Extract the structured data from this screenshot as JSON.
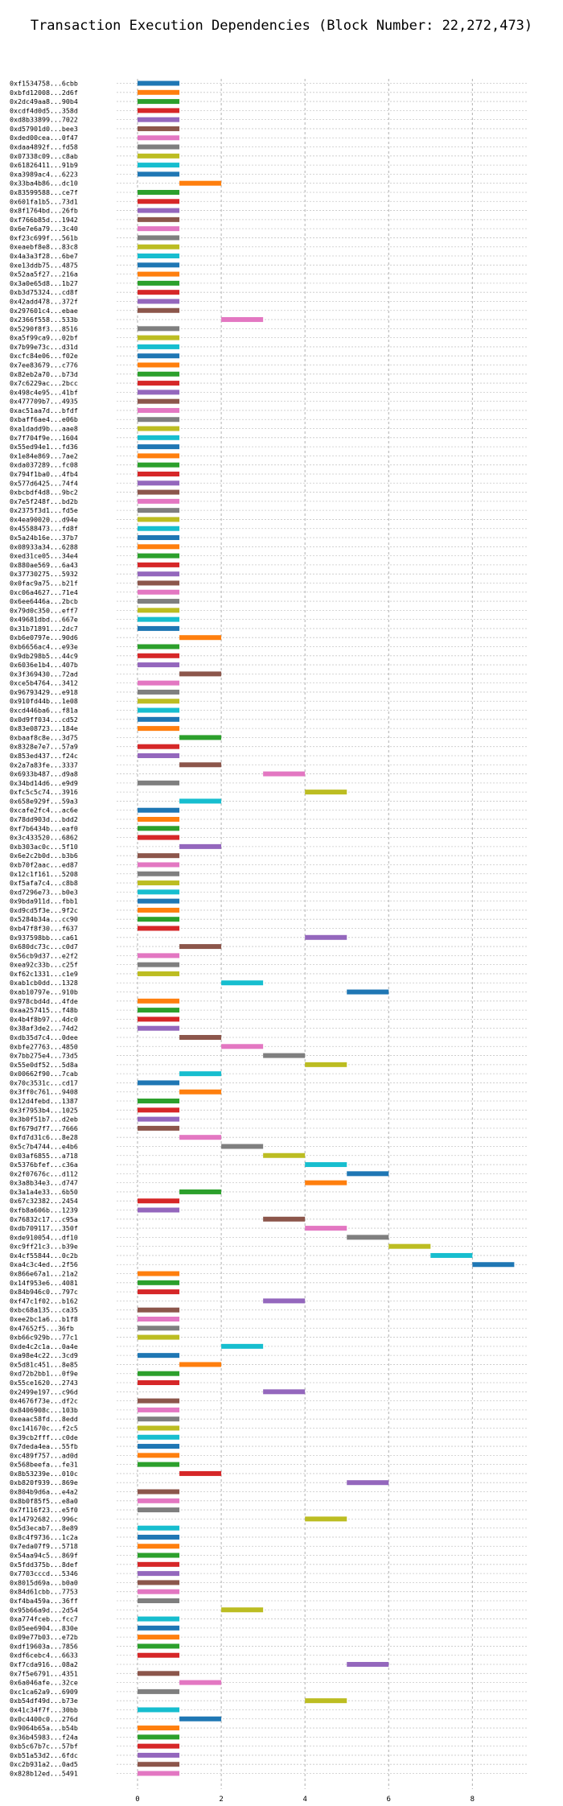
{
  "chart_data": {
    "type": "bar",
    "orientation": "horizontal",
    "title": "Transaction Execution Dependencies (Block Number: 22,272,473)",
    "xlabel": "",
    "ylabel": "",
    "xlim": [
      -0.5,
      9.3
    ],
    "xticks": [
      0,
      2,
      4,
      6,
      8
    ],
    "grid": true,
    "legend": "none",
    "palette": [
      "#1f77b4",
      "#ff7f0e",
      "#2ca02c",
      "#d62728",
      "#9467bd",
      "#8c564b",
      "#e377c2",
      "#7f7f7f",
      "#bcbd22",
      "#17becf"
    ],
    "transactions": [
      {
        "label": "0xf1534758...6cbb",
        "start": 0,
        "end": 1
      },
      {
        "label": "0xbfd12008...2d6f",
        "start": 0,
        "end": 1
      },
      {
        "label": "0x2dc49aa8...90b4",
        "start": 0,
        "end": 1
      },
      {
        "label": "0xcdf4d0d5...358d",
        "start": 0,
        "end": 1
      },
      {
        "label": "0xd8b33899...7022",
        "start": 0,
        "end": 1
      },
      {
        "label": "0xd57901d0...bee3",
        "start": 0,
        "end": 1
      },
      {
        "label": "0xded00cea...0f47",
        "start": 0,
        "end": 1
      },
      {
        "label": "0xdaa4892f...fd58",
        "start": 0,
        "end": 1
      },
      {
        "label": "0x07338c09...c8ab",
        "start": 0,
        "end": 1
      },
      {
        "label": "0x61826411...91b9",
        "start": 0,
        "end": 1
      },
      {
        "label": "0xa3989ac4...6223",
        "start": 0,
        "end": 1
      },
      {
        "label": "0x33ba4b86...dc10",
        "start": 1,
        "end": 2
      },
      {
        "label": "0x83599588...ce7f",
        "start": 0,
        "end": 1
      },
      {
        "label": "0x601fa1b5...73d1",
        "start": 0,
        "end": 1
      },
      {
        "label": "0x8f1764bd...26fb",
        "start": 0,
        "end": 1
      },
      {
        "label": "0xf766b85d...1942",
        "start": 0,
        "end": 1
      },
      {
        "label": "0x6e7e6a79...3c40",
        "start": 0,
        "end": 1
      },
      {
        "label": "0xf23c699f...561b",
        "start": 0,
        "end": 1
      },
      {
        "label": "0xeaebf8e8...83c8",
        "start": 0,
        "end": 1
      },
      {
        "label": "0x4a3a3f28...6be7",
        "start": 0,
        "end": 1
      },
      {
        "label": "0xe13ddb75...4875",
        "start": 0,
        "end": 1
      },
      {
        "label": "0x52aa5f27...216a",
        "start": 0,
        "end": 1
      },
      {
        "label": "0x3a0e65d8...1b27",
        "start": 0,
        "end": 1
      },
      {
        "label": "0xb3d75324...cd8f",
        "start": 0,
        "end": 1
      },
      {
        "label": "0x42add478...372f",
        "start": 0,
        "end": 1
      },
      {
        "label": "0x297601c4...ebae",
        "start": 0,
        "end": 1
      },
      {
        "label": "0x2366f558...533b",
        "start": 2,
        "end": 3
      },
      {
        "label": "0x5290f8f3...8516",
        "start": 0,
        "end": 1
      },
      {
        "label": "0xa5f99ca9...02bf",
        "start": 0,
        "end": 1
      },
      {
        "label": "0x7b99e73c...d31d",
        "start": 0,
        "end": 1
      },
      {
        "label": "0xcfc84e06...f02e",
        "start": 0,
        "end": 1
      },
      {
        "label": "0x7ee83679...c776",
        "start": 0,
        "end": 1
      },
      {
        "label": "0x82eb2a70...b73d",
        "start": 0,
        "end": 1
      },
      {
        "label": "0x7c6229ac...2bcc",
        "start": 0,
        "end": 1
      },
      {
        "label": "0x498c4e95...41bf",
        "start": 0,
        "end": 1
      },
      {
        "label": "0x477709b7...4935",
        "start": 0,
        "end": 1
      },
      {
        "label": "0xac51aa7d...bfdf",
        "start": 0,
        "end": 1
      },
      {
        "label": "0xbaff6ae4...e06b",
        "start": 0,
        "end": 1
      },
      {
        "label": "0xa1dadd9b...aae8",
        "start": 0,
        "end": 1
      },
      {
        "label": "0x7f704f9e...1604",
        "start": 0,
        "end": 1
      },
      {
        "label": "0x55ed94e1...fd36",
        "start": 0,
        "end": 1
      },
      {
        "label": "0x1e84e869...7ae2",
        "start": 0,
        "end": 1
      },
      {
        "label": "0xda037289...fc08",
        "start": 0,
        "end": 1
      },
      {
        "label": "0x794f1ba0...4fb4",
        "start": 0,
        "end": 1
      },
      {
        "label": "0x577d6425...74f4",
        "start": 0,
        "end": 1
      },
      {
        "label": "0xbcbdf4d8...9bc2",
        "start": 0,
        "end": 1
      },
      {
        "label": "0x7e5f248f...bd2b",
        "start": 0,
        "end": 1
      },
      {
        "label": "0x2375f3d1...fd5e",
        "start": 0,
        "end": 1
      },
      {
        "label": "0x4ea90020...d94e",
        "start": 0,
        "end": 1
      },
      {
        "label": "0x45588473...fd8f",
        "start": 0,
        "end": 1
      },
      {
        "label": "0x5a24b16e...37b7",
        "start": 0,
        "end": 1
      },
      {
        "label": "0x08933a34...6288",
        "start": 0,
        "end": 1
      },
      {
        "label": "0xed31ce05...34e4",
        "start": 0,
        "end": 1
      },
      {
        "label": "0x880ae569...6a43",
        "start": 0,
        "end": 1
      },
      {
        "label": "0x37730275...5932",
        "start": 0,
        "end": 1
      },
      {
        "label": "0x0fac9a75...b21f",
        "start": 0,
        "end": 1
      },
      {
        "label": "0xc06a4627...71e4",
        "start": 0,
        "end": 1
      },
      {
        "label": "0x6ee6446a...2bcb",
        "start": 0,
        "end": 1
      },
      {
        "label": "0x79d0c350...eff7",
        "start": 0,
        "end": 1
      },
      {
        "label": "0x49681dbd...667e",
        "start": 0,
        "end": 1
      },
      {
        "label": "0x31b71891...2dc7",
        "start": 0,
        "end": 1
      },
      {
        "label": "0xb6e0797e...90d6",
        "start": 1,
        "end": 2
      },
      {
        "label": "0xb6656ac4...e93e",
        "start": 0,
        "end": 1
      },
      {
        "label": "0x9db298b5...44c9",
        "start": 0,
        "end": 1
      },
      {
        "label": "0x6036e1b4...407b",
        "start": 0,
        "end": 1
      },
      {
        "label": "0x3f369430...72ad",
        "start": 1,
        "end": 2
      },
      {
        "label": "0xce5b4764...3412",
        "start": 0,
        "end": 1
      },
      {
        "label": "0x96793429...e918",
        "start": 0,
        "end": 1
      },
      {
        "label": "0x910fd44b...1e08",
        "start": 0,
        "end": 1
      },
      {
        "label": "0xcd446ba6...f81a",
        "start": 0,
        "end": 1
      },
      {
        "label": "0x0d9ff034...cd52",
        "start": 0,
        "end": 1
      },
      {
        "label": "0x83e08723...184e",
        "start": 0,
        "end": 1
      },
      {
        "label": "0xbaaf8c8e...3d75",
        "start": 1,
        "end": 2
      },
      {
        "label": "0x8328e7e7...57a9",
        "start": 0,
        "end": 1
      },
      {
        "label": "0x853ed437...f24c",
        "start": 0,
        "end": 1
      },
      {
        "label": "0x2a7a83fe...3337",
        "start": 1,
        "end": 2
      },
      {
        "label": "0x6933b487...d9a8",
        "start": 3,
        "end": 4
      },
      {
        "label": "0x34bd14d6...e9d9",
        "start": 0,
        "end": 1
      },
      {
        "label": "0xfc5c5c74...3916",
        "start": 4,
        "end": 5
      },
      {
        "label": "0x658e929f...59a3",
        "start": 1,
        "end": 2
      },
      {
        "label": "0xcafe2fc4...ac6e",
        "start": 0,
        "end": 1
      },
      {
        "label": "0x78dd903d...bdd2",
        "start": 0,
        "end": 1
      },
      {
        "label": "0xf7b6434b...eaf0",
        "start": 0,
        "end": 1
      },
      {
        "label": "0x3c433520...6862",
        "start": 0,
        "end": 1
      },
      {
        "label": "0xb303ac0c...5f10",
        "start": 1,
        "end": 2
      },
      {
        "label": "0x6e2c2b0d...b3b6",
        "start": 0,
        "end": 1
      },
      {
        "label": "0xb70f2aac...ed87",
        "start": 0,
        "end": 1
      },
      {
        "label": "0x12c1f161...5208",
        "start": 0,
        "end": 1
      },
      {
        "label": "0xf5afa7c4...c8b8",
        "start": 0,
        "end": 1
      },
      {
        "label": "0xd7296e73...b0e3",
        "start": 0,
        "end": 1
      },
      {
        "label": "0x9bda911d...fbb1",
        "start": 0,
        "end": 1
      },
      {
        "label": "0xd9cd5f3e...9f2c",
        "start": 0,
        "end": 1
      },
      {
        "label": "0x5284b34a...cc90",
        "start": 0,
        "end": 1
      },
      {
        "label": "0xb47f8f30...f637",
        "start": 0,
        "end": 1
      },
      {
        "label": "0x937598bb...ca61",
        "start": 4,
        "end": 5
      },
      {
        "label": "0x680dc73c...c0d7",
        "start": 1,
        "end": 2
      },
      {
        "label": "0x56cb9d37...e2f2",
        "start": 0,
        "end": 1
      },
      {
        "label": "0xea92c33b...c25f",
        "start": 0,
        "end": 1
      },
      {
        "label": "0xf62c1331...c1e9",
        "start": 0,
        "end": 1
      },
      {
        "label": "0xab1cb0dd...1328",
        "start": 2,
        "end": 3
      },
      {
        "label": "0xab10797e...910b",
        "start": 5,
        "end": 6
      },
      {
        "label": "0x978cbd4d...4fde",
        "start": 0,
        "end": 1
      },
      {
        "label": "0xaa257415...f48b",
        "start": 0,
        "end": 1
      },
      {
        "label": "0x4b4f8b97...4dc0",
        "start": 0,
        "end": 1
      },
      {
        "label": "0x38af3de2...74d2",
        "start": 0,
        "end": 1
      },
      {
        "label": "0xdb35d7c4...0dee",
        "start": 1,
        "end": 2
      },
      {
        "label": "0xbfe27763...4850",
        "start": 2,
        "end": 3
      },
      {
        "label": "0x7bb275e4...73d5",
        "start": 3,
        "end": 4
      },
      {
        "label": "0x55e0df52...5d8a",
        "start": 4,
        "end": 5
      },
      {
        "label": "0x00662f90...7cab",
        "start": 1,
        "end": 2
      },
      {
        "label": "0x70c3531c...cd17",
        "start": 0,
        "end": 1
      },
      {
        "label": "0x3ff0c761...9408",
        "start": 1,
        "end": 2
      },
      {
        "label": "0x12d4febd...1387",
        "start": 0,
        "end": 1
      },
      {
        "label": "0x3f7953b4...1025",
        "start": 0,
        "end": 1
      },
      {
        "label": "0x3b0f51b7...d2eb",
        "start": 0,
        "end": 1
      },
      {
        "label": "0xf679d7f7...7666",
        "start": 0,
        "end": 1
      },
      {
        "label": "0xfd7d31c6...8e28",
        "start": 1,
        "end": 2
      },
      {
        "label": "0x5c7b4744...e4b6",
        "start": 2,
        "end": 3
      },
      {
        "label": "0x03af6855...a718",
        "start": 3,
        "end": 4
      },
      {
        "label": "0x5376bfef...c36a",
        "start": 4,
        "end": 5
      },
      {
        "label": "0x2f07676c...d112",
        "start": 5,
        "end": 6
      },
      {
        "label": "0x3a8b34e3...d747",
        "start": 4,
        "end": 5
      },
      {
        "label": "0x3a1a4e33...6b50",
        "start": 1,
        "end": 2
      },
      {
        "label": "0x67c32382...2454",
        "start": 0,
        "end": 1
      },
      {
        "label": "0xfb8a606b...1239",
        "start": 0,
        "end": 1
      },
      {
        "label": "0x76832c17...c95a",
        "start": 3,
        "end": 4
      },
      {
        "label": "0xdb709117...350f",
        "start": 4,
        "end": 5
      },
      {
        "label": "0xde910054...df10",
        "start": 5,
        "end": 6
      },
      {
        "label": "0xc9ff21c3...b39e",
        "start": 6,
        "end": 7
      },
      {
        "label": "0x4cf55844...0c2b",
        "start": 7,
        "end": 8
      },
      {
        "label": "0xa4c3c4ed...2f56",
        "start": 8,
        "end": 9
      },
      {
        "label": "0x866e67a1...21a2",
        "start": 0,
        "end": 1
      },
      {
        "label": "0x14f953e6...4081",
        "start": 0,
        "end": 1
      },
      {
        "label": "0x84b946c0...797c",
        "start": 0,
        "end": 1
      },
      {
        "label": "0xf47c1f02...b162",
        "start": 3,
        "end": 4
      },
      {
        "label": "0xbc68a135...ca35",
        "start": 0,
        "end": 1
      },
      {
        "label": "0xee2bc1a6...b1f8",
        "start": 0,
        "end": 1
      },
      {
        "label": "0x47652f5...36fb",
        "start": 0,
        "end": 1
      },
      {
        "label": "0xb66c929b...77c1",
        "start": 0,
        "end": 1
      },
      {
        "label": "0xde4c2c1a...0a4e",
        "start": 2,
        "end": 3
      },
      {
        "label": "0xa98e4c22...3cd9",
        "start": 0,
        "end": 1
      },
      {
        "label": "0x5d81c451...8e85",
        "start": 1,
        "end": 2
      },
      {
        "label": "0xd72b2bb1...0f9e",
        "start": 0,
        "end": 1
      },
      {
        "label": "0x55ce1620...2743",
        "start": 0,
        "end": 1
      },
      {
        "label": "0x2499e197...c96d",
        "start": 3,
        "end": 4
      },
      {
        "label": "0x4676f73e...df2c",
        "start": 0,
        "end": 1
      },
      {
        "label": "0x8406908c...103b",
        "start": 0,
        "end": 1
      },
      {
        "label": "0xeaac58fd...8edd",
        "start": 0,
        "end": 1
      },
      {
        "label": "0xc141670c...f2c5",
        "start": 0,
        "end": 1
      },
      {
        "label": "0x39cb2fff...c0de",
        "start": 0,
        "end": 1
      },
      {
        "label": "0x7deda4ea...55fb",
        "start": 0,
        "end": 1
      },
      {
        "label": "0xc489f757...ad0d",
        "start": 0,
        "end": 1
      },
      {
        "label": "0x568beefa...fe31",
        "start": 0,
        "end": 1
      },
      {
        "label": "0x8b53239e...010c",
        "start": 1,
        "end": 2
      },
      {
        "label": "0xb820f939...869e",
        "start": 5,
        "end": 6
      },
      {
        "label": "0x804b9d6a...e4a2",
        "start": 0,
        "end": 1
      },
      {
        "label": "0x8b0f85f5...e8a0",
        "start": 0,
        "end": 1
      },
      {
        "label": "0x7f116f23...e5f0",
        "start": 0,
        "end": 1
      },
      {
        "label": "0x14792682...996c",
        "start": 4,
        "end": 5
      },
      {
        "label": "0x5d3ecab7...8e89",
        "start": 0,
        "end": 1
      },
      {
        "label": "0x8c4f9736...1c2a",
        "start": 0,
        "end": 1
      },
      {
        "label": "0x7eda07f9...5718",
        "start": 0,
        "end": 1
      },
      {
        "label": "0x54aa94c5...869f",
        "start": 0,
        "end": 1
      },
      {
        "label": "0x5fdd375b...8def",
        "start": 0,
        "end": 1
      },
      {
        "label": "0x7703cccd...5346",
        "start": 0,
        "end": 1
      },
      {
        "label": "0x8015d69a...b0a0",
        "start": 0,
        "end": 1
      },
      {
        "label": "0x84d61cbb...7753",
        "start": 0,
        "end": 1
      },
      {
        "label": "0xf4ba459a...36ff",
        "start": 0,
        "end": 1
      },
      {
        "label": "0x95b66a9d...2d54",
        "start": 2,
        "end": 3
      },
      {
        "label": "0xa774fceb...fcc7",
        "start": 0,
        "end": 1
      },
      {
        "label": "0x05ee6904...830e",
        "start": 0,
        "end": 1
      },
      {
        "label": "0x09e77b03...e72b",
        "start": 0,
        "end": 1
      },
      {
        "label": "0xdf19603a...7856",
        "start": 0,
        "end": 1
      },
      {
        "label": "0xdf6cebc4...6633",
        "start": 0,
        "end": 1
      },
      {
        "label": "0xf7cda916...08a2",
        "start": 5,
        "end": 6
      },
      {
        "label": "0x7f5e6791...4351",
        "start": 0,
        "end": 1
      },
      {
        "label": "0x6a046afe...32ce",
        "start": 1,
        "end": 2
      },
      {
        "label": "0xc1ca62a9...6909",
        "start": 0,
        "end": 1
      },
      {
        "label": "0xb54df49d...b73e",
        "start": 4,
        "end": 5
      },
      {
        "label": "0x41c34f7f...30bb",
        "start": 0,
        "end": 1
      },
      {
        "label": "0x0c4400c0...276d",
        "start": 1,
        "end": 2
      },
      {
        "label": "0x9064b65a...b54b",
        "start": 0,
        "end": 1
      },
      {
        "label": "0x36b45983...f24a",
        "start": 0,
        "end": 1
      },
      {
        "label": "0xb5c67b7c...57bf",
        "start": 0,
        "end": 1
      },
      {
        "label": "0xb51a53d2...6fdc",
        "start": 0,
        "end": 1
      },
      {
        "label": "0xc2b931a2...0ad5",
        "start": 0,
        "end": 1
      },
      {
        "label": "0x828b12ed...5491",
        "start": 0,
        "end": 1
      }
    ]
  }
}
